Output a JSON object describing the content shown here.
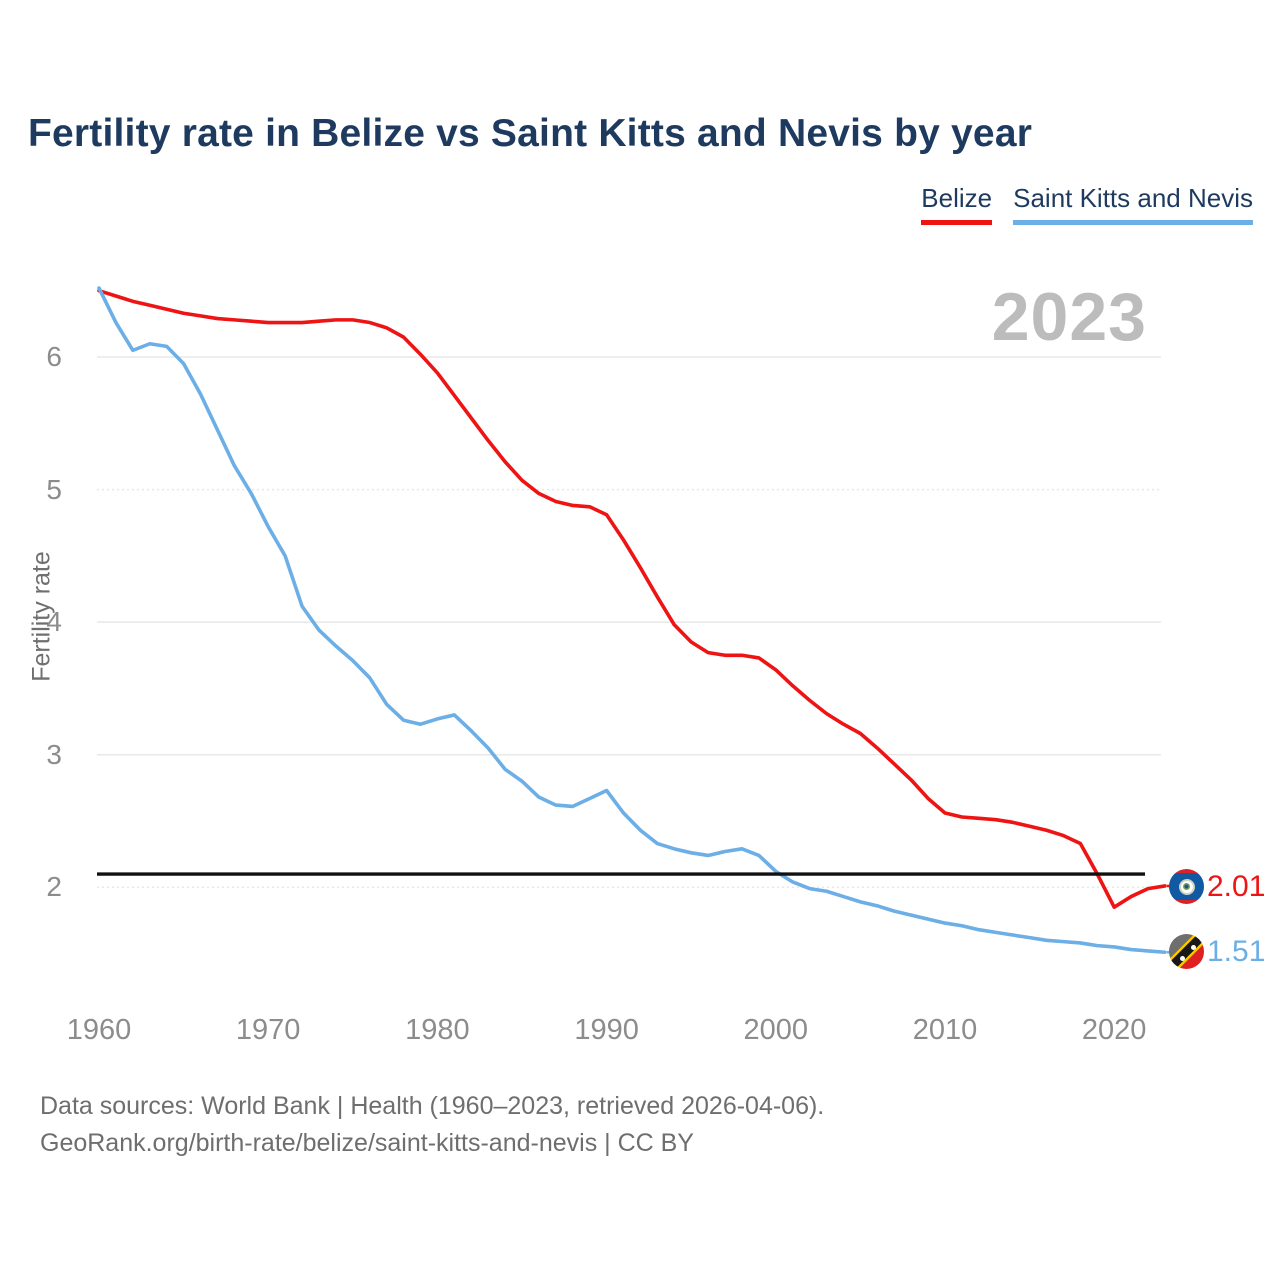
{
  "title": "Fertility rate in Belize vs Saint Kitts and Nevis by year",
  "legend": {
    "items": [
      {
        "label": "Belize",
        "color": "#ee1414"
      },
      {
        "label": "Saint Kitts and Nevis",
        "color": "#6caee6"
      }
    ]
  },
  "watermark": "2023",
  "chart_data": {
    "type": "line",
    "title": "Fertility rate in Belize vs Saint Kitts and Nevis by year",
    "xlabel": "",
    "ylabel": "Fertility rate",
    "xlim": [
      1960,
      2023
    ],
    "ylim": [
      1.2,
      6.8
    ],
    "x_ticks": [
      1960,
      1970,
      1980,
      1990,
      2000,
      2010,
      2020
    ],
    "y_ticks": [
      2,
      3,
      4,
      5,
      6
    ],
    "grid": "horizontal",
    "legend_position": "top-right",
    "years": [
      1960,
      1961,
      1962,
      1963,
      1964,
      1965,
      1966,
      1967,
      1968,
      1969,
      1970,
      1971,
      1972,
      1973,
      1974,
      1975,
      1976,
      1977,
      1978,
      1979,
      1980,
      1981,
      1982,
      1983,
      1984,
      1985,
      1986,
      1987,
      1988,
      1989,
      1990,
      1991,
      1992,
      1993,
      1994,
      1995,
      1996,
      1997,
      1998,
      1999,
      2000,
      2001,
      2002,
      2003,
      2004,
      2005,
      2006,
      2007,
      2008,
      2009,
      2010,
      2011,
      2012,
      2013,
      2014,
      2015,
      2016,
      2017,
      2018,
      2019,
      2020,
      2021,
      2022,
      2023
    ],
    "series": [
      {
        "name": "Belize",
        "color": "#ee1414",
        "values": [
          6.5,
          6.46,
          6.42,
          6.39,
          6.36,
          6.33,
          6.31,
          6.29,
          6.28,
          6.27,
          6.26,
          6.26,
          6.26,
          6.27,
          6.28,
          6.28,
          6.26,
          6.22,
          6.15,
          6.02,
          5.88,
          5.71,
          5.54,
          5.37,
          5.21,
          5.07,
          4.97,
          4.91,
          4.88,
          4.87,
          4.81,
          4.62,
          4.41,
          4.19,
          3.98,
          3.85,
          3.77,
          3.75,
          3.75,
          3.73,
          3.64,
          3.52,
          3.41,
          3.31,
          3.23,
          3.16,
          3.05,
          2.93,
          2.81,
          2.67,
          2.56,
          2.53,
          2.52,
          2.51,
          2.49,
          2.46,
          2.43,
          2.39,
          2.33,
          2.1,
          1.85,
          1.93,
          1.99,
          2.01
        ]
      },
      {
        "name": "Saint Kitts and Nevis",
        "color": "#6caee6",
        "values": [
          6.52,
          6.26,
          6.05,
          6.1,
          6.08,
          5.95,
          5.72,
          5.45,
          5.18,
          4.97,
          4.72,
          4.5,
          4.12,
          3.94,
          3.82,
          3.71,
          3.58,
          3.38,
          3.26,
          3.23,
          3.27,
          3.3,
          3.18,
          3.05,
          2.89,
          2.8,
          2.68,
          2.62,
          2.61,
          2.67,
          2.73,
          2.56,
          2.43,
          2.33,
          2.29,
          2.26,
          2.24,
          2.27,
          2.29,
          2.24,
          2.12,
          2.04,
          1.99,
          1.97,
          1.93,
          1.89,
          1.86,
          1.82,
          1.79,
          1.76,
          1.73,
          1.71,
          1.68,
          1.66,
          1.64,
          1.62,
          1.6,
          1.59,
          1.58,
          1.56,
          1.55,
          1.53,
          1.52,
          1.51
        ]
      }
    ],
    "reference_line": {
      "value": 2.1,
      "color": "#111111"
    },
    "end_labels": [
      {
        "series": "Belize",
        "text": "2.01"
      },
      {
        "series": "Saint Kitts and Nevis",
        "text": "1.51"
      }
    ],
    "current_year_label": "2023"
  },
  "footer": {
    "line1": "Data sources: World Bank | Health (1960–2023, retrieved 2026-04-06).",
    "line2": "GeoRank.org/birth-rate/belize/saint-kitts-and-nevis | CC BY"
  }
}
